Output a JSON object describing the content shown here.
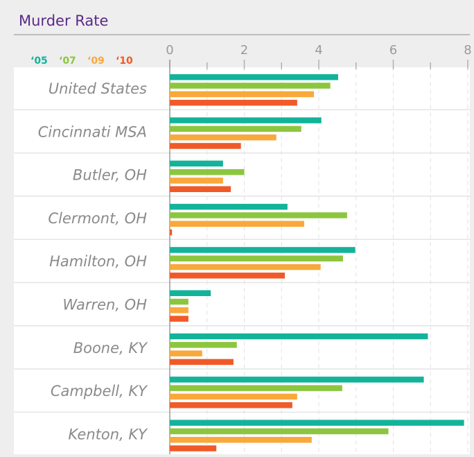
{
  "chart_data": {
    "type": "bar",
    "orientation": "horizontal",
    "title": "Murder Rate",
    "categories": [
      "United States",
      "Cincinnati MSA",
      "Butler, OH",
      "Clermont, OH",
      "Hamilton, OH",
      "Warren, OH",
      "Boone, KY",
      "Campbell, KY",
      "Kenton, KY"
    ],
    "series": [
      {
        "name": "‘05",
        "color": "#13b39a",
        "values": [
          4.52,
          4.07,
          1.43,
          3.16,
          4.98,
          1.1,
          6.93,
          6.82,
          7.9
        ]
      },
      {
        "name": "‘07",
        "color": "#8cc63f",
        "values": [
          4.31,
          3.53,
          2.0,
          4.76,
          4.65,
          0.5,
          1.8,
          4.63,
          5.87
        ]
      },
      {
        "name": "‘09",
        "color": "#f9a83c",
        "values": [
          3.87,
          2.86,
          1.43,
          3.61,
          4.05,
          0.5,
          0.87,
          3.42,
          3.81
        ]
      },
      {
        "name": "‘10",
        "color": "#f05a28",
        "values": [
          3.42,
          1.91,
          1.64,
          0.06,
          3.09,
          0.5,
          1.71,
          3.29,
          1.25
        ]
      }
    ],
    "xlim": [
      0,
      8
    ],
    "xticks": [
      0,
      2,
      4,
      6,
      8
    ],
    "minor_xticks": [
      1,
      3,
      5,
      7
    ],
    "grid": true,
    "legend": "top-left"
  }
}
